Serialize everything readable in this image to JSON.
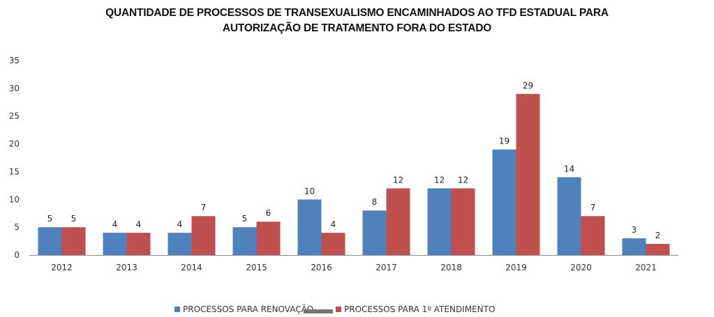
{
  "chart_data": {
    "type": "bar",
    "title_lines": [
      "QUANTIDADE DE PROCESSOS DE TRANSEXUALISMO ENCAMINHADOS AO TFD ESTADUAL PARA",
      "AUTORIZAÇÃO DE TRATAMENTO FORA DO ESTADO"
    ],
    "xlabel": "",
    "ylabel": "",
    "ylim": [
      0,
      35
    ],
    "yticks": [
      0,
      5,
      10,
      15,
      20,
      25,
      30,
      35
    ],
    "grid": false,
    "legend_position": "bottom",
    "categories": [
      "2012",
      "2013",
      "2014",
      "2015",
      "2016",
      "2017",
      "2018",
      "2019",
      "2020",
      "2021"
    ],
    "series": [
      {
        "name": "PROCESSOS PARA RENOVAÇÃO",
        "color": "#4f81bd",
        "values": [
          5,
          4,
          4,
          5,
          10,
          8,
          12,
          19,
          14,
          3
        ]
      },
      {
        "name": "PROCESSOS PARA 1º ATENDIMENTO",
        "color": "#c0504d",
        "values": [
          5,
          4,
          7,
          6,
          4,
          12,
          12,
          29,
          7,
          2
        ]
      }
    ],
    "data_labels": true
  }
}
